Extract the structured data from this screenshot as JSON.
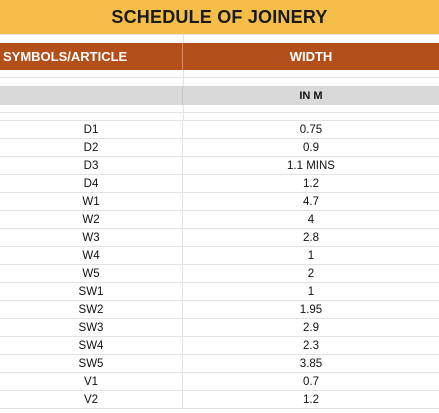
{
  "title": "SCHEDULE OF JOINERY",
  "header": {
    "col1": "SYMBOLS/ARTICLE",
    "col2": "WIDTH"
  },
  "units": "IN M",
  "rows": [
    {
      "symbol": "D1",
      "width": "0.75"
    },
    {
      "symbol": "D2",
      "width": "0.9"
    },
    {
      "symbol": "D3",
      "width": "1.1 MINS"
    },
    {
      "symbol": "D4",
      "width": "1.2"
    },
    {
      "symbol": "W1",
      "width": "4.7"
    },
    {
      "symbol": "W2",
      "width": "4"
    },
    {
      "symbol": "W3",
      "width": "2.8"
    },
    {
      "symbol": "W4",
      "width": "1"
    },
    {
      "symbol": "W5",
      "width": "2"
    },
    {
      "symbol": "SW1",
      "width": "1"
    },
    {
      "symbol": "SW2",
      "width": "1.95"
    },
    {
      "symbol": "SW3",
      "width": "2.9"
    },
    {
      "symbol": "SW4",
      "width": "2.3"
    },
    {
      "symbol": "SW5",
      "width": "3.85"
    },
    {
      "symbol": "V1",
      "width": "0.7"
    },
    {
      "symbol": "V2",
      "width": "1.2"
    }
  ],
  "colors": {
    "title_bg": "#F5BE49",
    "header_bg": "#B34F1B",
    "units_bg": "#D9D9D9"
  }
}
